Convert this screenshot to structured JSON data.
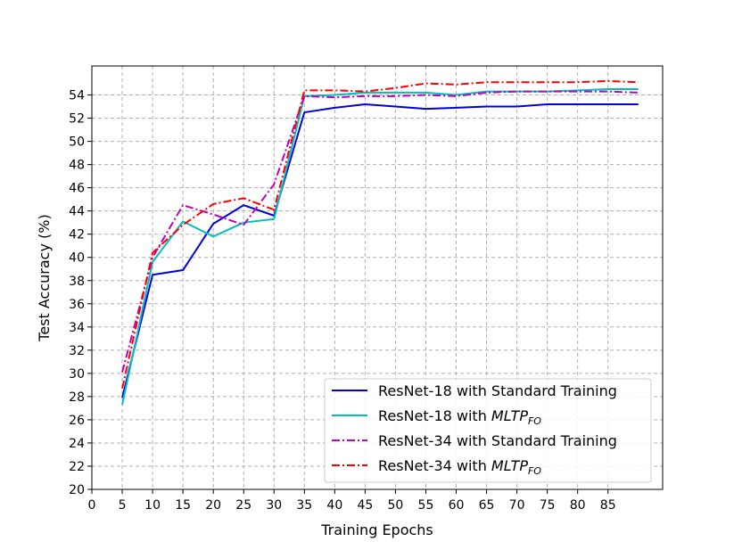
{
  "chart_data": {
    "type": "line",
    "xlabel": "Training Epochs",
    "ylabel": "Test Accuracy (%)",
    "xlim": [
      0,
      94
    ],
    "ylim": [
      20,
      56.5
    ],
    "xticks": [
      0,
      5,
      10,
      15,
      20,
      25,
      30,
      35,
      40,
      45,
      50,
      55,
      60,
      65,
      70,
      75,
      80,
      85
    ],
    "yticks": [
      20,
      22,
      24,
      26,
      28,
      30,
      32,
      34,
      36,
      38,
      40,
      42,
      44,
      46,
      48,
      50,
      52,
      54
    ],
    "grid": true,
    "legend_position": "lower-right",
    "x": [
      5,
      10,
      15,
      20,
      25,
      30,
      35,
      40,
      45,
      50,
      55,
      60,
      65,
      70,
      75,
      80,
      85,
      90
    ],
    "series": [
      {
        "name": "ResNet-18 with Standard Training",
        "name_main": "ResNet-18 with Standard Training",
        "name_italic": "",
        "name_sub": "",
        "color": "#0000dd",
        "style": "solid",
        "values": [
          27.9,
          38.5,
          38.9,
          42.9,
          44.5,
          43.6,
          52.5,
          52.9,
          53.2,
          53.0,
          52.8,
          52.9,
          53.0,
          53.0,
          53.2,
          53.2,
          53.2,
          53.2
        ]
      },
      {
        "name": "ResNet-18 with MLTP_FO",
        "name_main": "ResNet-18 with ",
        "name_italic": "MLTP",
        "name_sub": "FO",
        "color": "#00bfbf",
        "style": "solid",
        "values": [
          27.3,
          39.6,
          43.1,
          41.8,
          43.0,
          43.3,
          53.9,
          54.0,
          54.2,
          54.2,
          54.2,
          54.0,
          54.3,
          54.3,
          54.3,
          54.4,
          54.5,
          54.5
        ]
      },
      {
        "name": "ResNet-34 with Standard Training",
        "name_main": "ResNet-34 with Standard Training",
        "name_italic": "",
        "name_sub": "",
        "color": "#bf00bf",
        "style": "dashdot",
        "values": [
          30.1,
          40.0,
          44.5,
          43.7,
          42.8,
          46.3,
          53.9,
          53.8,
          53.9,
          53.9,
          54.0,
          53.9,
          54.2,
          54.3,
          54.3,
          54.3,
          54.3,
          54.2
        ]
      },
      {
        "name": "ResNet-34 with MLTP_FO",
        "name_main": "ResNet-34 with ",
        "name_italic": "MLTP",
        "name_sub": "FO",
        "color": "#ff0000",
        "style": "dashdot",
        "values": [
          28.7,
          40.4,
          42.8,
          44.6,
          45.1,
          44.1,
          54.4,
          54.4,
          54.3,
          54.6,
          55.0,
          54.9,
          55.1,
          55.1,
          55.1,
          55.1,
          55.2,
          55.1
        ]
      }
    ]
  }
}
